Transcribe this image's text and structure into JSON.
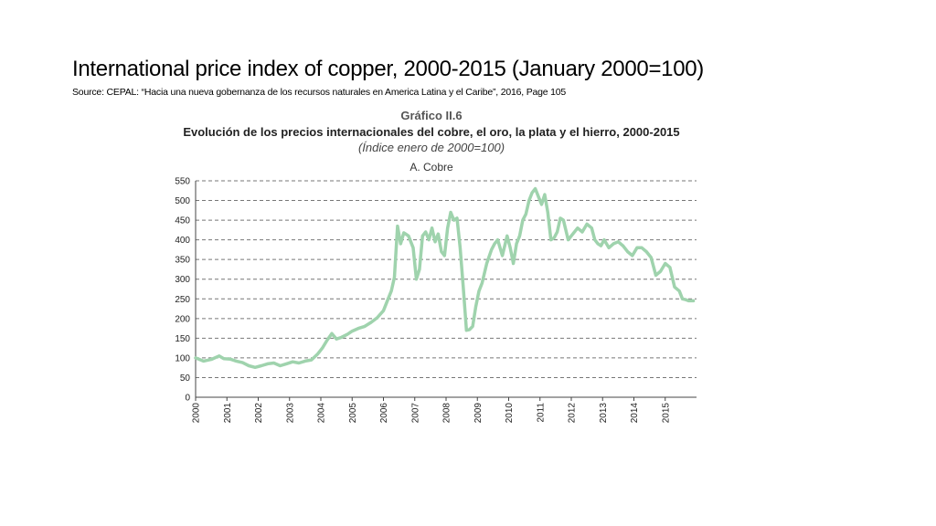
{
  "slide": {
    "title": "International price index of copper, 2000-2015 (January 2000=100)",
    "source": "Source: CEPAL: “Hacia una nueva gobernanza de los recursos naturales en America Latina y el Caribe”, 2016, Page 105"
  },
  "chart_data": {
    "type": "line",
    "figure_label": "Gráfico II.6",
    "title": "Evolución de los precios internacionales del cobre, el oro, la plata y el hierro, 2000-2015",
    "subtitle": "(Índice enero de 2000=100)",
    "panel_title": "A. Cobre",
    "xlabel": "",
    "ylabel": "",
    "xlim": [
      2000,
      2016
    ],
    "ylim": [
      0,
      550
    ],
    "yticks": [
      "0",
      "50",
      "100",
      "150",
      "200",
      "250",
      "300",
      "350",
      "400",
      "450",
      "500",
      "550"
    ],
    "xticks": [
      "2000",
      "2001",
      "2002",
      "2003",
      "2004",
      "2005",
      "2006",
      "2007",
      "2008",
      "2009",
      "2010",
      "2011",
      "2012",
      "2013",
      "2014",
      "2015"
    ],
    "grid": "horizontal-dashed",
    "line_color": "#9fd3ad",
    "x": [
      2000.0,
      2000.25,
      2000.5,
      2000.75,
      2000.9,
      2001.1,
      2001.3,
      2001.5,
      2001.7,
      2001.9,
      2002.1,
      2002.3,
      2002.5,
      2002.7,
      2002.9,
      2003.1,
      2003.3,
      2003.5,
      2003.7,
      2003.9,
      2004.05,
      2004.2,
      2004.35,
      2004.5,
      2004.65,
      2004.85,
      2005.0,
      2005.2,
      2005.4,
      2005.6,
      2005.8,
      2006.0,
      2006.15,
      2006.25,
      2006.35,
      2006.45,
      2006.55,
      2006.65,
      2006.8,
      2006.95,
      2007.05,
      2007.15,
      2007.25,
      2007.35,
      2007.45,
      2007.55,
      2007.65,
      2007.75,
      2007.85,
      2007.95,
      2008.05,
      2008.15,
      2008.25,
      2008.35,
      2008.45,
      2008.55,
      2008.65,
      2008.75,
      2008.85,
      2008.95,
      2009.05,
      2009.15,
      2009.3,
      2009.45,
      2009.55,
      2009.65,
      2009.8,
      2009.95,
      2010.05,
      2010.15,
      2010.25,
      2010.35,
      2010.45,
      2010.55,
      2010.65,
      2010.75,
      2010.85,
      2010.95,
      2011.05,
      2011.15,
      2011.25,
      2011.35,
      2011.45,
      2011.55,
      2011.65,
      2011.75,
      2011.9,
      2012.05,
      2012.2,
      2012.35,
      2012.5,
      2012.65,
      2012.75,
      2012.85,
      2012.95,
      2013.05,
      2013.2,
      2013.35,
      2013.5,
      2013.65,
      2013.8,
      2013.95,
      2014.1,
      2014.25,
      2014.4,
      2014.55,
      2014.7,
      2014.85,
      2015.0,
      2015.15,
      2015.3,
      2015.45,
      2015.55,
      2015.65,
      2015.75,
      2015.9
    ],
    "values": [
      100,
      92,
      96,
      105,
      98,
      97,
      92,
      88,
      80,
      76,
      80,
      85,
      87,
      80,
      85,
      90,
      87,
      92,
      95,
      110,
      125,
      145,
      162,
      148,
      152,
      160,
      168,
      175,
      180,
      190,
      202,
      220,
      250,
      270,
      305,
      435,
      390,
      418,
      410,
      380,
      300,
      325,
      410,
      420,
      400,
      430,
      395,
      415,
      370,
      360,
      430,
      470,
      450,
      455,
      380,
      280,
      170,
      172,
      180,
      230,
      270,
      290,
      340,
      375,
      390,
      400,
      360,
      410,
      380,
      340,
      390,
      410,
      450,
      465,
      500,
      520,
      530,
      510,
      490,
      515,
      470,
      400,
      405,
      420,
      455,
      450,
      400,
      415,
      430,
      420,
      440,
      430,
      400,
      390,
      385,
      400,
      380,
      390,
      395,
      385,
      370,
      360,
      380,
      380,
      370,
      355,
      310,
      320,
      340,
      330,
      280,
      270,
      250,
      248,
      245,
      245
    ]
  }
}
